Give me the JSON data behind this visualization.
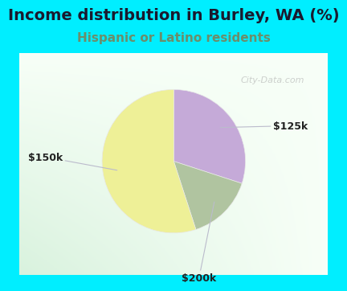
{
  "title": "Income distribution in Burley, WA (%)",
  "subtitle": "Hispanic or Latino residents",
  "slices": [
    {
      "label": "$125k",
      "value": 30,
      "color": "#c5aad8"
    },
    {
      "label": "$200k",
      "value": 15,
      "color": "#b0c4a0"
    },
    {
      "label": "$150k",
      "value": 55,
      "color": "#eef097"
    }
  ],
  "title_color": "#1a1a2e",
  "subtitle_color": "#6b8e6b",
  "top_bg_color": "#00eeff",
  "watermark": "City-Data.com",
  "label_fontsize": 9,
  "title_fontsize": 14,
  "subtitle_fontsize": 11,
  "start_angle": 90,
  "wedge_edge_color": "#ffffff"
}
